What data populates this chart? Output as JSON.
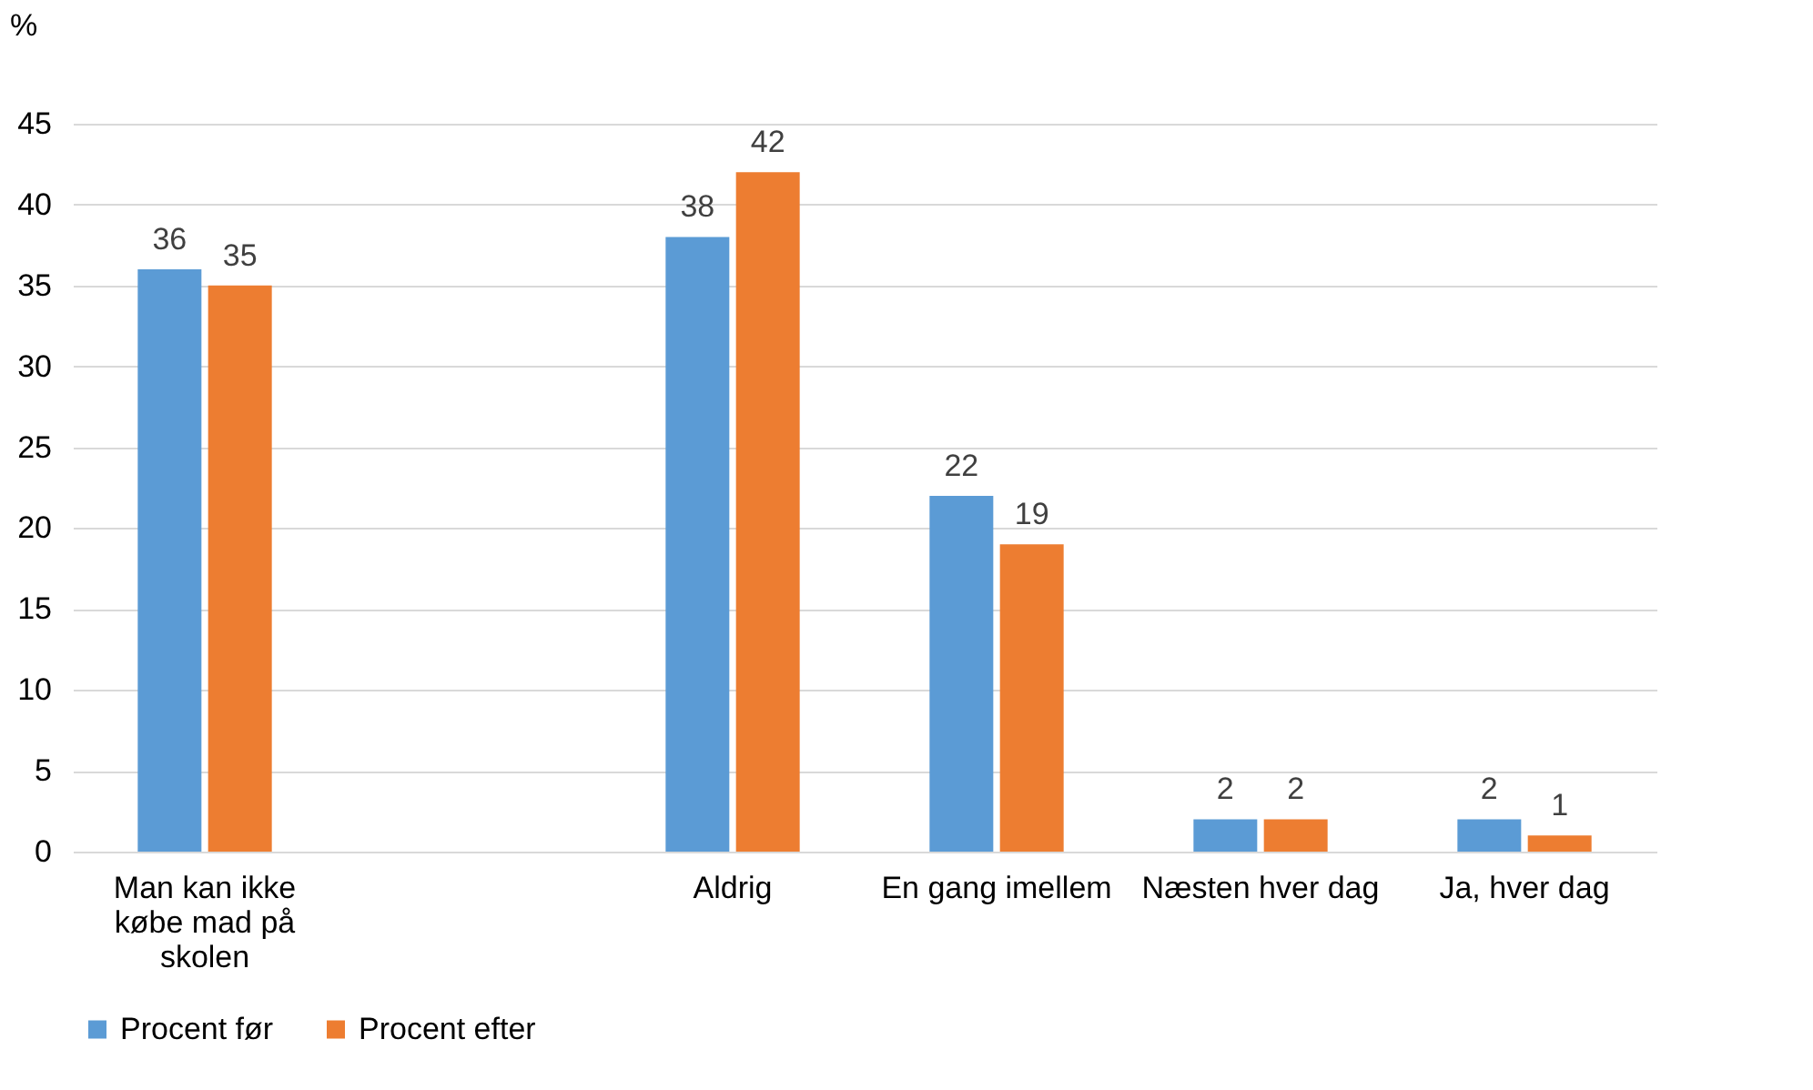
{
  "chart_data": {
    "type": "bar",
    "ylabel": "%",
    "categories": [
      "Man kan ikke købe mad på skolen",
      null,
      "Aldrig",
      "En gang imellem",
      "Næsten hver dag",
      "Ja, hver dag"
    ],
    "series": [
      {
        "name": "Procent før",
        "color": "#5b9bd5",
        "values": [
          36,
          null,
          38,
          22,
          2,
          2
        ]
      },
      {
        "name": "Procent efter",
        "color": "#ed7d31",
        "values": [
          35,
          null,
          42,
          19,
          2,
          1
        ]
      }
    ],
    "ylim": [
      0,
      45
    ],
    "yticks": [
      0,
      5,
      10,
      15,
      20,
      25,
      30,
      35,
      40,
      45
    ],
    "grid": "y",
    "legend": "bottom",
    "data_labels": true
  }
}
